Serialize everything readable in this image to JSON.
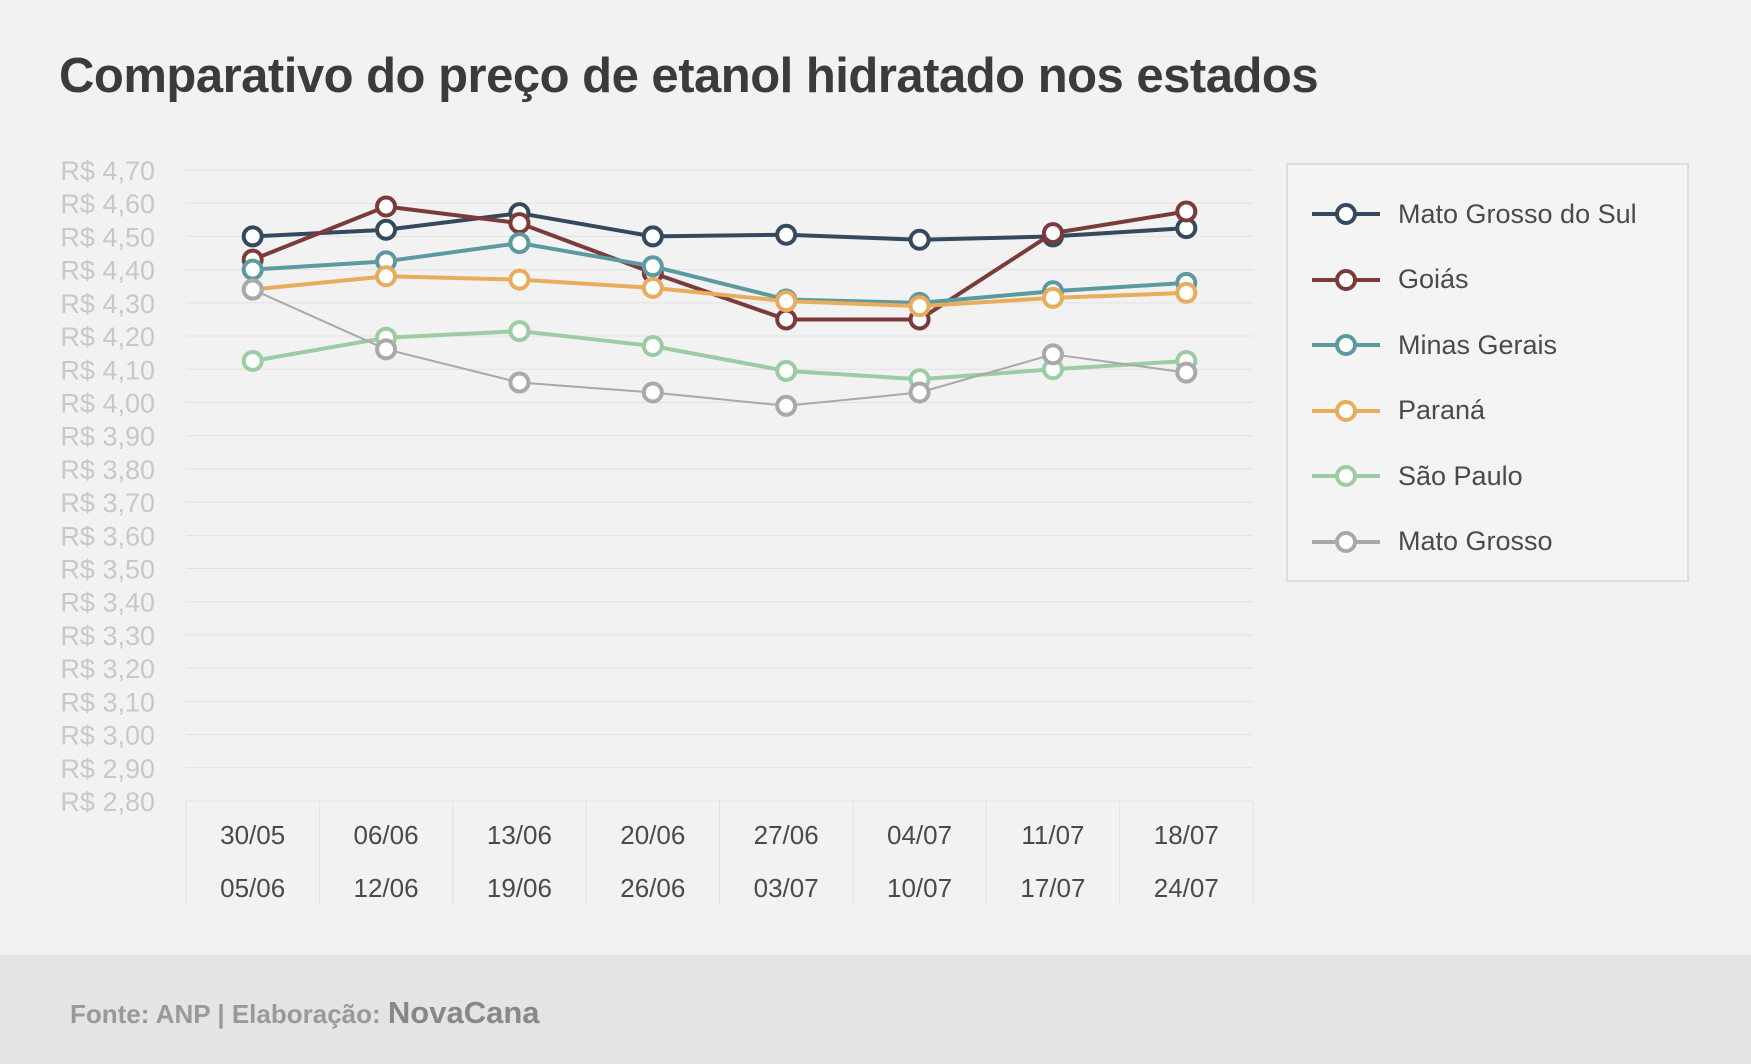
{
  "title": "Comparativo do preço de etanol hidratado nos estados",
  "footer": {
    "source": "Fonte: ANP | Elaboração:",
    "brand": "NovaCana"
  },
  "chart_data": {
    "type": "line",
    "title": "Comparativo do preço de etanol hidratado nos estados",
    "categories": [
      [
        "30/05",
        "05/06"
      ],
      [
        "06/06",
        "12/06"
      ],
      [
        "13/06",
        "19/06"
      ],
      [
        "20/06",
        "26/06"
      ],
      [
        "27/06",
        "03/07"
      ],
      [
        "04/07",
        "10/07"
      ],
      [
        "11/07",
        "17/07"
      ],
      [
        "18/07",
        "24/07"
      ]
    ],
    "y_ticks": [
      "R$ 4,70",
      "R$ 4,60",
      "R$ 4,50",
      "R$ 4,40",
      "R$ 4,30",
      "R$ 4,20",
      "R$ 4,10",
      "R$ 4,00",
      "R$ 3,90",
      "R$ 3,80",
      "R$ 3,70",
      "R$ 3,60",
      "R$ 3,50",
      "R$ 3,40",
      "R$ 3,30",
      "R$ 3,20",
      "R$ 3,10",
      "R$ 3,00",
      "R$ 2,90",
      "R$ 2,80"
    ],
    "ylim": [
      2.8,
      4.7
    ],
    "grid": true,
    "legend_position": "right",
    "series": [
      {
        "name": "Mato Grosso do Sul",
        "color": "#34495e",
        "stroke": 4,
        "values": [
          4.5,
          4.52,
          4.57,
          4.5,
          4.505,
          4.49,
          4.5,
          4.525
        ]
      },
      {
        "name": "Goiás",
        "color": "#7b3b3b",
        "stroke": 4,
        "values": [
          4.43,
          4.59,
          4.54,
          4.39,
          4.25,
          4.25,
          4.51,
          4.575
        ]
      },
      {
        "name": "Minas Gerais",
        "color": "#5b9aa0",
        "stroke": 4,
        "values": [
          4.4,
          4.425,
          4.48,
          4.41,
          4.31,
          4.3,
          4.335,
          4.36
        ]
      },
      {
        "name": "Paraná",
        "color": "#e8ad5c",
        "stroke": 4,
        "values": [
          4.34,
          4.38,
          4.37,
          4.345,
          4.305,
          4.29,
          4.315,
          4.33
        ]
      },
      {
        "name": "São Paulo",
        "color": "#9ccca4",
        "stroke": 4,
        "values": [
          4.125,
          4.195,
          4.215,
          4.17,
          4.095,
          4.07,
          4.1,
          4.125
        ]
      },
      {
        "name": "Mato Grosso",
        "color": "#a9a9a9",
        "stroke": 2,
        "values": [
          4.34,
          4.16,
          4.06,
          4.03,
          3.99,
          4.03,
          4.145,
          4.09
        ]
      }
    ]
  }
}
